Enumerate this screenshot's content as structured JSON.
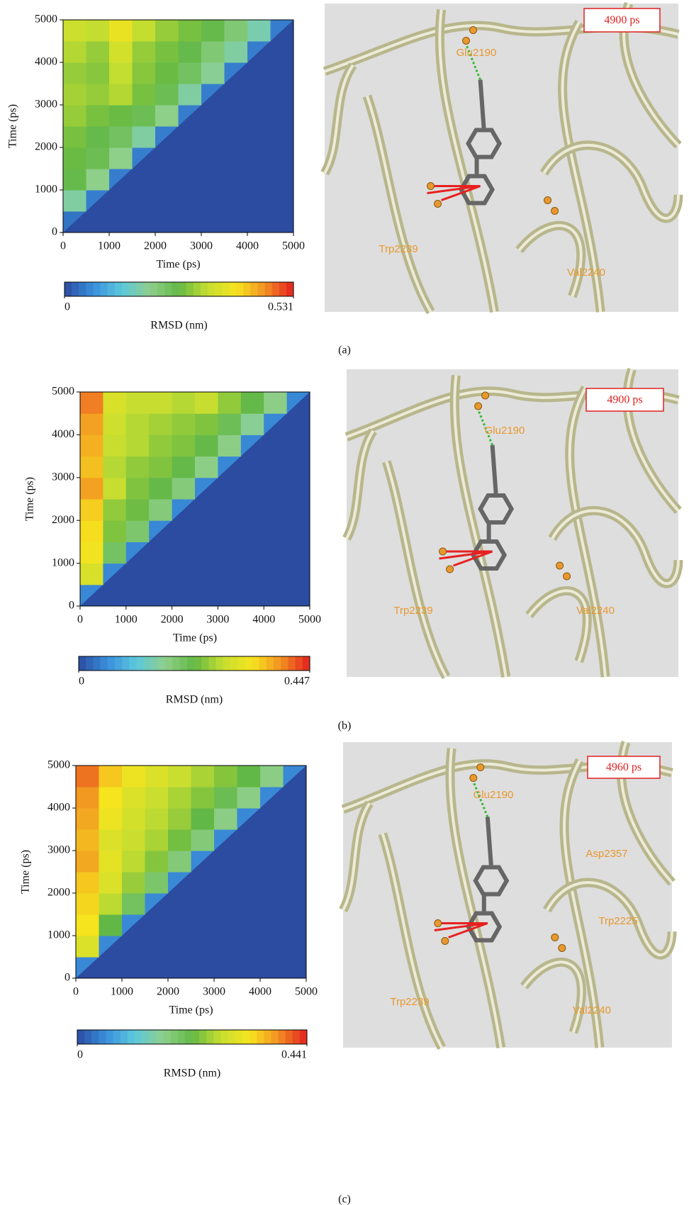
{
  "panel_labels": [
    "(a)",
    "(b)",
    "(c)"
  ],
  "chart_data": [
    {
      "type": "heatmap",
      "xlabel": "Time (ps)",
      "ylabel": "Time (ps)",
      "xlim": [
        0,
        5000
      ],
      "ylim": [
        0,
        5000
      ],
      "xticks": [
        0,
        1000,
        2000,
        3000,
        4000,
        5000
      ],
      "yticks": [
        0,
        1000,
        2000,
        3000,
        4000,
        5000
      ],
      "background": "#2b4ca0",
      "colormap": [
        "#2b4ca0",
        "#3a8fdc",
        "#5cc8dc",
        "#8fcf8a",
        "#62b845",
        "#c6de30",
        "#f6e41e",
        "#f29022",
        "#e42020"
      ],
      "zlim": [
        0,
        0.531
      ],
      "zticks": [
        0,
        0.531
      ],
      "colorbar_label": "RMSD (nm)",
      "z": [
        [
          0.04,
          null,
          null,
          null,
          null,
          null,
          null,
          null,
          null,
          null
        ],
        [
          0.18,
          0.05,
          null,
          null,
          null,
          null,
          null,
          null,
          null,
          null
        ],
        [
          0.26,
          0.2,
          0.05,
          null,
          null,
          null,
          null,
          null,
          null,
          null
        ],
        [
          0.27,
          0.25,
          0.2,
          0.05,
          null,
          null,
          null,
          null,
          null,
          null
        ],
        [
          0.28,
          0.26,
          0.24,
          0.18,
          0.05,
          null,
          null,
          null,
          null,
          null
        ],
        [
          0.3,
          0.28,
          0.27,
          0.25,
          0.2,
          0.05,
          null,
          null,
          null,
          null
        ],
        [
          0.31,
          0.3,
          0.32,
          0.28,
          0.25,
          0.18,
          0.05,
          null,
          null,
          null
        ],
        [
          0.3,
          0.29,
          0.33,
          0.29,
          0.27,
          0.24,
          0.19,
          0.05,
          null,
          null
        ],
        [
          0.32,
          0.3,
          0.35,
          0.3,
          0.28,
          0.26,
          0.22,
          0.18,
          0.05,
          null
        ],
        [
          0.34,
          0.33,
          0.38,
          0.33,
          0.3,
          0.28,
          0.26,
          0.22,
          0.17,
          0.05
        ]
      ]
    },
    {
      "type": "heatmap",
      "xlabel": "Time (ps)",
      "ylabel": "Time (ps)",
      "xlim": [
        0,
        5000
      ],
      "ylim": [
        0,
        5000
      ],
      "xticks": [
        0,
        1000,
        2000,
        3000,
        4000,
        5000
      ],
      "yticks": [
        0,
        1000,
        2000,
        3000,
        4000,
        5000
      ],
      "background": "#2b4ca0",
      "colormap": [
        "#2b4ca0",
        "#3a8fdc",
        "#5cc8dc",
        "#8fcf8a",
        "#62b845",
        "#c6de30",
        "#f6e41e",
        "#f29022",
        "#e42020"
      ],
      "zlim": [
        0,
        0.447
      ],
      "zticks": [
        0,
        0.447
      ],
      "colorbar_label": "RMSD (nm)",
      "z": [
        [
          0.05,
          null,
          null,
          null,
          null,
          null,
          null,
          null,
          null,
          null
        ],
        [
          0.3,
          0.05,
          null,
          null,
          null,
          null,
          null,
          null,
          null,
          null
        ],
        [
          0.33,
          0.2,
          0.05,
          null,
          null,
          null,
          null,
          null,
          null,
          null
        ],
        [
          0.34,
          0.24,
          0.19,
          0.05,
          null,
          null,
          null,
          null,
          null,
          null
        ],
        [
          0.35,
          0.25,
          0.23,
          0.18,
          0.05,
          null,
          null,
          null,
          null,
          null
        ],
        [
          0.38,
          0.28,
          0.24,
          0.22,
          0.18,
          0.05,
          null,
          null,
          null,
          null
        ],
        [
          0.36,
          0.27,
          0.25,
          0.24,
          0.22,
          0.17,
          0.05,
          null,
          null,
          null
        ],
        [
          0.37,
          0.28,
          0.27,
          0.25,
          0.24,
          0.22,
          0.17,
          0.05,
          null,
          null
        ],
        [
          0.38,
          0.29,
          0.27,
          0.26,
          0.25,
          0.24,
          0.21,
          0.16,
          0.05,
          null
        ],
        [
          0.4,
          0.3,
          0.28,
          0.28,
          0.27,
          0.28,
          0.25,
          0.22,
          0.17,
          0.05
        ]
      ]
    },
    {
      "type": "heatmap",
      "xlabel": "Time (ps)",
      "ylabel": "Time (ps)",
      "xlim": [
        0,
        5000
      ],
      "ylim": [
        0,
        5000
      ],
      "xticks": [
        0,
        1000,
        2000,
        3000,
        4000,
        5000
      ],
      "yticks": [
        0,
        1000,
        2000,
        3000,
        4000,
        5000
      ],
      "background": "#2b4ca0",
      "colormap": [
        "#2b4ca0",
        "#3a8fdc",
        "#5cc8dc",
        "#8fcf8a",
        "#62b845",
        "#c6de30",
        "#f6e41e",
        "#f29022",
        "#e42020"
      ],
      "zlim": [
        0,
        0.441
      ],
      "zticks": [
        0,
        0.441
      ],
      "colorbar_label": "RMSD (nm)",
      "z": [
        [
          0.05,
          null,
          null,
          null,
          null,
          null,
          null,
          null,
          null,
          null
        ],
        [
          0.3,
          0.05,
          null,
          null,
          null,
          null,
          null,
          null,
          null,
          null
        ],
        [
          0.33,
          0.22,
          0.05,
          null,
          null,
          null,
          null,
          null,
          null,
          null
        ],
        [
          0.34,
          0.27,
          0.2,
          0.05,
          null,
          null,
          null,
          null,
          null,
          null
        ],
        [
          0.35,
          0.3,
          0.25,
          0.19,
          0.05,
          null,
          null,
          null,
          null,
          null
        ],
        [
          0.37,
          0.31,
          0.27,
          0.24,
          0.18,
          0.05,
          null,
          null,
          null,
          null
        ],
        [
          0.36,
          0.3,
          0.28,
          0.26,
          0.23,
          0.18,
          0.05,
          null,
          null,
          null
        ],
        [
          0.37,
          0.32,
          0.29,
          0.27,
          0.25,
          0.22,
          0.17,
          0.05,
          null,
          null
        ],
        [
          0.38,
          0.33,
          0.3,
          0.28,
          0.26,
          0.24,
          0.21,
          0.17,
          0.05,
          null
        ],
        [
          0.4,
          0.35,
          0.32,
          0.3,
          0.28,
          0.26,
          0.24,
          0.22,
          0.17,
          0.05
        ]
      ]
    }
  ],
  "structures": [
    {
      "time": "4900 ps",
      "residues": [
        "Glu2190",
        "Trp2239",
        "Val2240"
      ]
    },
    {
      "time": "4900 ps",
      "residues": [
        "Glu2190",
        "Trp2239",
        "Val2240"
      ]
    },
    {
      "time": "4960 ps",
      "residues": [
        "Glu2190",
        "Asp2357",
        "Trp2225",
        "Trp2239",
        "Val2240"
      ]
    }
  ]
}
